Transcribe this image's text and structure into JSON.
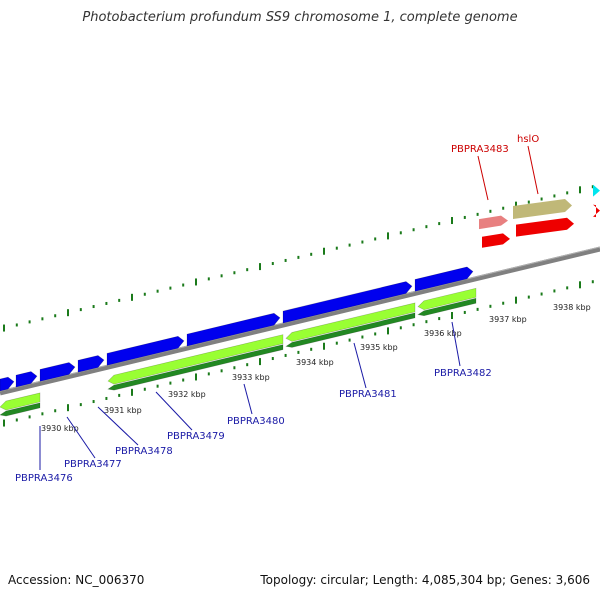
{
  "title": "Photobacterium profundum SS9 chromosome 1, complete genome",
  "footer": {
    "accession": "Accession: NC_006370",
    "summary": "Topology: circular; Length: 4,085,304 bp; Genes: 3,606"
  },
  "colors": {
    "backbone": "#808080",
    "forward_gene": "#0000ee",
    "reverse_gene_light": "#99ff33",
    "reverse_gene_dark": "#228822",
    "tick": "#1a7a1a",
    "blue_label": "#1a1aa6",
    "red_label": "#cc0000",
    "red_gene": "#ee0000",
    "pink_gene": "#e88080",
    "olive_gene": "#c0b878",
    "cyan_gene": "#00e5ee"
  },
  "scale": {
    "unit": "kbp",
    "labels": [
      "3930 kbp",
      "3931 kbp",
      "3932 kbp",
      "3933 kbp",
      "3934 kbp",
      "3935 kbp",
      "3936 kbp",
      "3937 kbp",
      "3938 kbp"
    ]
  },
  "gene_labels": {
    "blue": [
      "PBPRA3476",
      "PBPRA3477",
      "PBPRA3478",
      "PBPRA3479",
      "PBPRA3480",
      "PBPRA3481",
      "PBPRA3482"
    ],
    "red": [
      "PBPRA3483",
      "hslO"
    ]
  }
}
